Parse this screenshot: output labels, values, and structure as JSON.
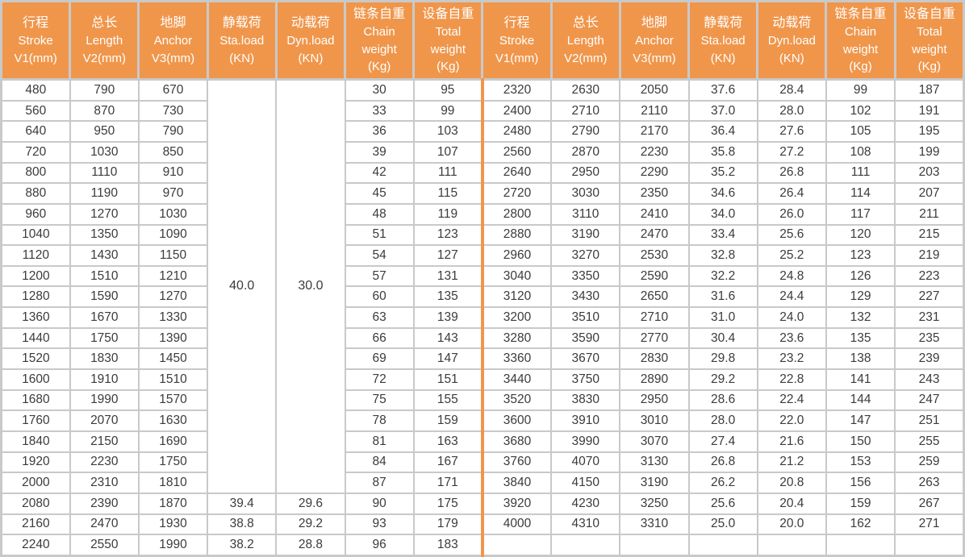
{
  "colors": {
    "header_bg": "#F0964B",
    "header_text": "#FFFFFF",
    "grid_line": "#C9C9C9",
    "body_text": "#3B3B3B",
    "section_divider": "#F0964B",
    "background": "#FFFFFF"
  },
  "table": {
    "column_headers": [
      {
        "key": "stroke",
        "lines": [
          "行程",
          "Stroke",
          "V1(mm)"
        ]
      },
      {
        "key": "length",
        "lines": [
          "总长",
          "Length",
          "V2(mm)"
        ]
      },
      {
        "key": "anchor",
        "lines": [
          "地脚",
          "Anchor",
          "V3(mm)"
        ]
      },
      {
        "key": "sta-load",
        "lines": [
          "静载荷",
          "Sta.load",
          "(KN)"
        ]
      },
      {
        "key": "dyn-load",
        "lines": [
          "动载荷",
          "Dyn.load",
          "(KN)"
        ]
      },
      {
        "key": "chain-weight",
        "lines": [
          "链条自重",
          "Chain",
          "weight",
          "(Kg)"
        ]
      },
      {
        "key": "total-weight",
        "lines": [
          "设备自重",
          "Total",
          "weight",
          "(Kg)"
        ]
      }
    ],
    "left_section": {
      "merged_sta_load": "40.0",
      "merged_dyn_load": "30.0",
      "merged_row_span": 20,
      "rows": [
        [
          "480",
          "790",
          "670",
          null,
          null,
          "30",
          "95"
        ],
        [
          "560",
          "870",
          "730",
          null,
          null,
          "33",
          "99"
        ],
        [
          "640",
          "950",
          "790",
          null,
          null,
          "36",
          "103"
        ],
        [
          "720",
          "1030",
          "850",
          null,
          null,
          "39",
          "107"
        ],
        [
          "800",
          "1110",
          "910",
          null,
          null,
          "42",
          "111"
        ],
        [
          "880",
          "1190",
          "970",
          null,
          null,
          "45",
          "115"
        ],
        [
          "960",
          "1270",
          "1030",
          null,
          null,
          "48",
          "119"
        ],
        [
          "1040",
          "1350",
          "1090",
          null,
          null,
          "51",
          "123"
        ],
        [
          "1120",
          "1430",
          "1150",
          null,
          null,
          "54",
          "127"
        ],
        [
          "1200",
          "1510",
          "1210",
          null,
          null,
          "57",
          "131"
        ],
        [
          "1280",
          "1590",
          "1270",
          null,
          null,
          "60",
          "135"
        ],
        [
          "1360",
          "1670",
          "1330",
          null,
          null,
          "63",
          "139"
        ],
        [
          "1440",
          "1750",
          "1390",
          null,
          null,
          "66",
          "143"
        ],
        [
          "1520",
          "1830",
          "1450",
          null,
          null,
          "69",
          "147"
        ],
        [
          "1600",
          "1910",
          "1510",
          null,
          null,
          "72",
          "151"
        ],
        [
          "1680",
          "1990",
          "1570",
          null,
          null,
          "75",
          "155"
        ],
        [
          "1760",
          "2070",
          "1630",
          null,
          null,
          "78",
          "159"
        ],
        [
          "1840",
          "2150",
          "1690",
          null,
          null,
          "81",
          "163"
        ],
        [
          "1920",
          "2230",
          "1750",
          null,
          null,
          "84",
          "167"
        ],
        [
          "2000",
          "2310",
          "1810",
          null,
          null,
          "87",
          "171"
        ],
        [
          "2080",
          "2390",
          "1870",
          "39.4",
          "29.6",
          "90",
          "175"
        ],
        [
          "2160",
          "2470",
          "1930",
          "38.8",
          "29.2",
          "93",
          "179"
        ],
        [
          "2240",
          "2550",
          "1990",
          "38.2",
          "28.8",
          "96",
          "183"
        ]
      ]
    },
    "right_section": {
      "rows": [
        [
          "2320",
          "2630",
          "2050",
          "37.6",
          "28.4",
          "99",
          "187"
        ],
        [
          "2400",
          "2710",
          "2110",
          "37.0",
          "28.0",
          "102",
          "191"
        ],
        [
          "2480",
          "2790",
          "2170",
          "36.4",
          "27.6",
          "105",
          "195"
        ],
        [
          "2560",
          "2870",
          "2230",
          "35.8",
          "27.2",
          "108",
          "199"
        ],
        [
          "2640",
          "2950",
          "2290",
          "35.2",
          "26.8",
          "111",
          "203"
        ],
        [
          "2720",
          "3030",
          "2350",
          "34.6",
          "26.4",
          "114",
          "207"
        ],
        [
          "2800",
          "3110",
          "2410",
          "34.0",
          "26.0",
          "117",
          "211"
        ],
        [
          "2880",
          "3190",
          "2470",
          "33.4",
          "25.6",
          "120",
          "215"
        ],
        [
          "2960",
          "3270",
          "2530",
          "32.8",
          "25.2",
          "123",
          "219"
        ],
        [
          "3040",
          "3350",
          "2590",
          "32.2",
          "24.8",
          "126",
          "223"
        ],
        [
          "3120",
          "3430",
          "2650",
          "31.6",
          "24.4",
          "129",
          "227"
        ],
        [
          "3200",
          "3510",
          "2710",
          "31.0",
          "24.0",
          "132",
          "231"
        ],
        [
          "3280",
          "3590",
          "2770",
          "30.4",
          "23.6",
          "135",
          "235"
        ],
        [
          "3360",
          "3670",
          "2830",
          "29.8",
          "23.2",
          "138",
          "239"
        ],
        [
          "3440",
          "3750",
          "2890",
          "29.2",
          "22.8",
          "141",
          "243"
        ],
        [
          "3520",
          "3830",
          "2950",
          "28.6",
          "22.4",
          "144",
          "247"
        ],
        [
          "3600",
          "3910",
          "3010",
          "28.0",
          "22.0",
          "147",
          "251"
        ],
        [
          "3680",
          "3990",
          "3070",
          "27.4",
          "21.6",
          "150",
          "255"
        ],
        [
          "3760",
          "4070",
          "3130",
          "26.8",
          "21.2",
          "153",
          "259"
        ],
        [
          "3840",
          "4150",
          "3190",
          "26.2",
          "20.8",
          "156",
          "263"
        ],
        [
          "3920",
          "4230",
          "3250",
          "25.6",
          "20.4",
          "159",
          "267"
        ],
        [
          "4000",
          "4310",
          "3310",
          "25.0",
          "20.0",
          "162",
          "271"
        ],
        [
          "",
          "",
          "",
          "",
          "",
          "",
          ""
        ]
      ]
    }
  }
}
